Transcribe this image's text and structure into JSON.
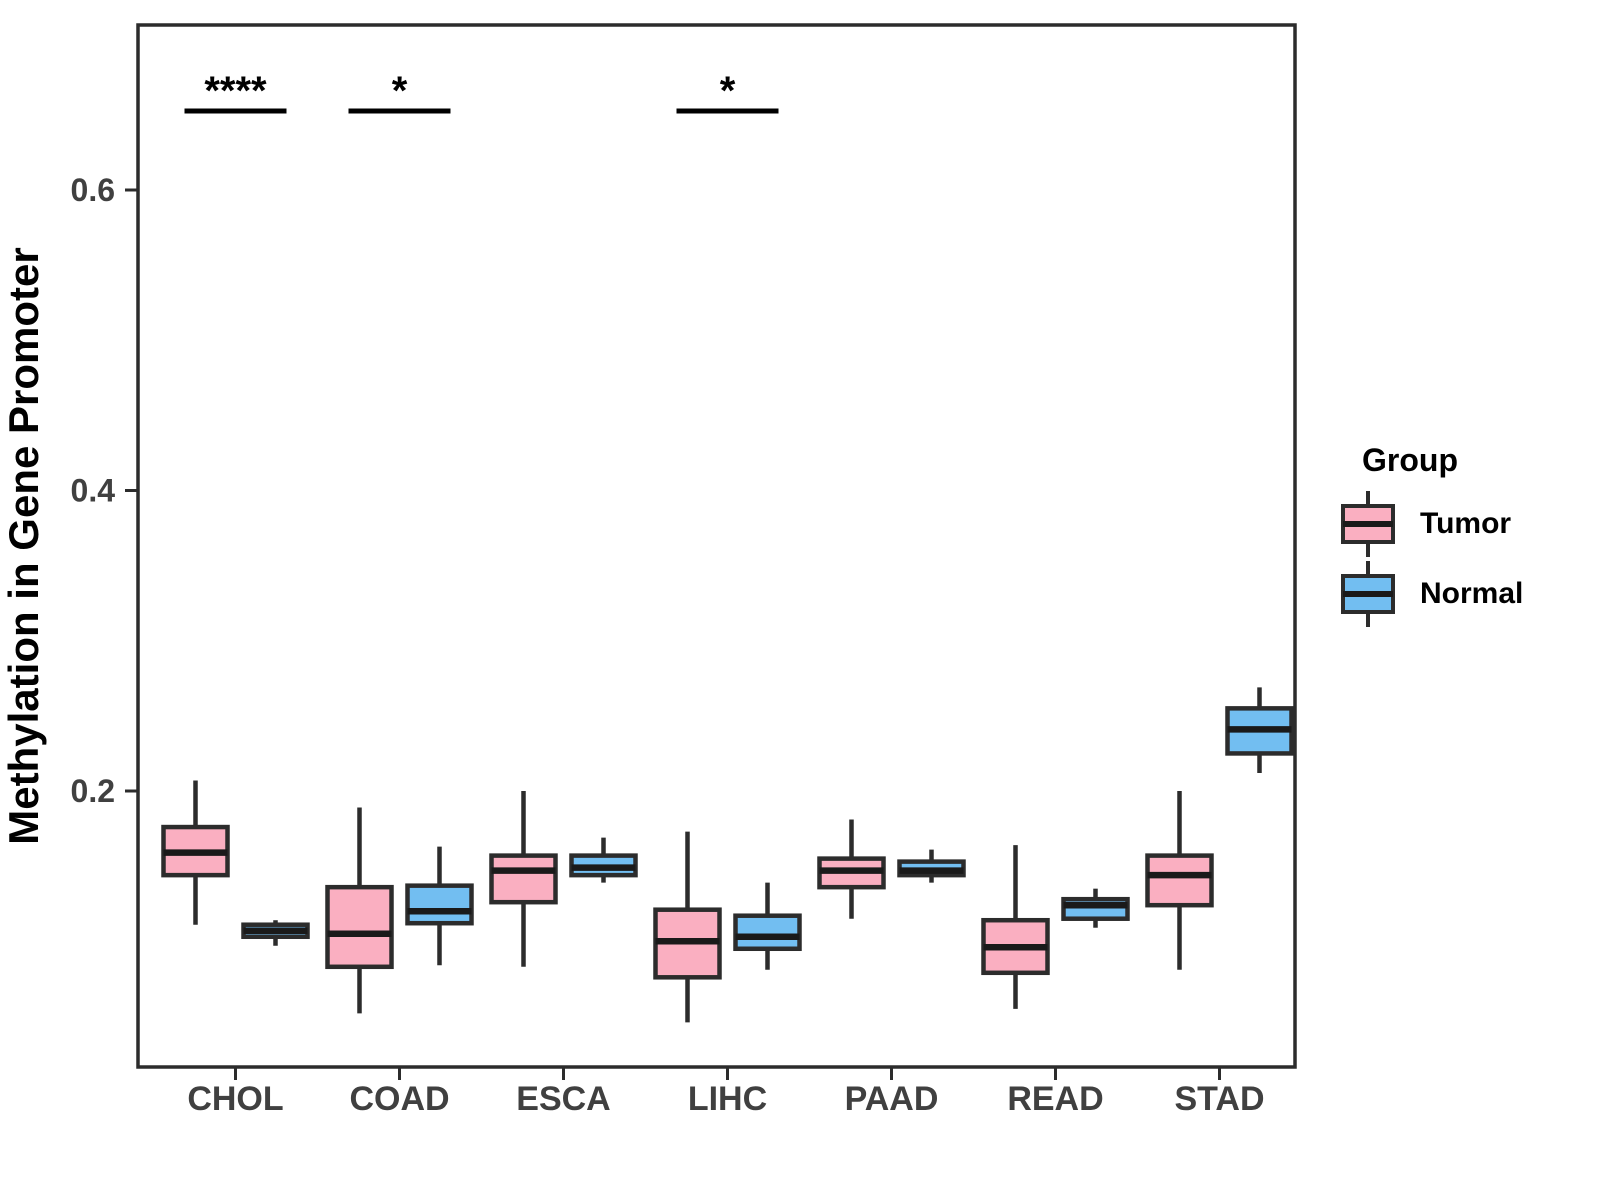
{
  "chart_data": {
    "type": "boxplot",
    "title": "",
    "xlabel": "",
    "ylabel": "Methylation in Gene Promoter",
    "y_axis": {
      "ticks": [
        {
          "value": 0.2,
          "label": "0.2"
        },
        {
          "value": 0.4,
          "label": "0.4"
        },
        {
          "value": 0.6,
          "label": "0.6"
        }
      ],
      "range": [
        0.016,
        0.715
      ],
      "grid": false
    },
    "categories": [
      "CHOL",
      "COAD",
      "ESCA",
      "LIHC",
      "PAAD",
      "READ",
      "STAD"
    ],
    "groups": [
      {
        "name": "Tumor",
        "color": "#FAAFC1"
      },
      {
        "name": "Normal",
        "color": "#72BEF1"
      }
    ],
    "series": [
      {
        "group": "Tumor",
        "boxes": [
          {
            "category": "CHOL",
            "min": 0.111,
            "q1": 0.144,
            "median": 0.159,
            "q3": 0.176,
            "max": 0.207
          },
          {
            "category": "COAD",
            "min": 0.052,
            "q1": 0.083,
            "median": 0.105,
            "q3": 0.136,
            "max": 0.189
          },
          {
            "category": "ESCA",
            "min": 0.083,
            "q1": 0.126,
            "median": 0.147,
            "q3": 0.157,
            "max": 0.2
          },
          {
            "category": "LIHC",
            "min": 0.046,
            "q1": 0.076,
            "median": 0.1,
            "q3": 0.121,
            "max": 0.173
          },
          {
            "category": "PAAD",
            "min": 0.115,
            "q1": 0.136,
            "median": 0.147,
            "q3": 0.155,
            "max": 0.181
          },
          {
            "category": "READ",
            "min": 0.055,
            "q1": 0.079,
            "median": 0.096,
            "q3": 0.114,
            "max": 0.164
          },
          {
            "category": "STAD",
            "min": 0.081,
            "q1": 0.124,
            "median": 0.144,
            "q3": 0.157,
            "max": 0.2
          }
        ]
      },
      {
        "group": "Normal",
        "boxes": [
          {
            "category": "CHOL",
            "min": 0.097,
            "q1": 0.103,
            "median": 0.107,
            "q3": 0.111,
            "max": 0.114
          },
          {
            "category": "COAD",
            "min": 0.084,
            "q1": 0.112,
            "median": 0.12,
            "q3": 0.137,
            "max": 0.163
          },
          {
            "category": "ESCA",
            "min": 0.139,
            "q1": 0.144,
            "median": 0.149,
            "q3": 0.157,
            "max": 0.169
          },
          {
            "category": "LIHC",
            "min": 0.081,
            "q1": 0.095,
            "median": 0.103,
            "q3": 0.117,
            "max": 0.139
          },
          {
            "category": "PAAD",
            "min": 0.139,
            "q1": 0.144,
            "median": 0.147,
            "q3": 0.153,
            "max": 0.161
          },
          {
            "category": "READ",
            "min": 0.109,
            "q1": 0.115,
            "median": 0.124,
            "q3": 0.128,
            "max": 0.135
          },
          {
            "category": "STAD",
            "min": 0.212,
            "q1": 0.225,
            "median": 0.241,
            "q3": 0.255,
            "max": 0.269
          }
        ]
      }
    ],
    "significance": [
      {
        "category": "CHOL",
        "label": "****"
      },
      {
        "category": "COAD",
        "label": "*"
      },
      {
        "category": "LIHC",
        "label": "*"
      }
    ],
    "legend": {
      "title": "Group",
      "position": "right"
    },
    "style": {
      "box_border": "#2C2C2C",
      "median_color": "#1A1A1A",
      "axis_color": "#2C2C2C",
      "tick_text_color": "#404040",
      "significance_color": "#000000"
    }
  }
}
